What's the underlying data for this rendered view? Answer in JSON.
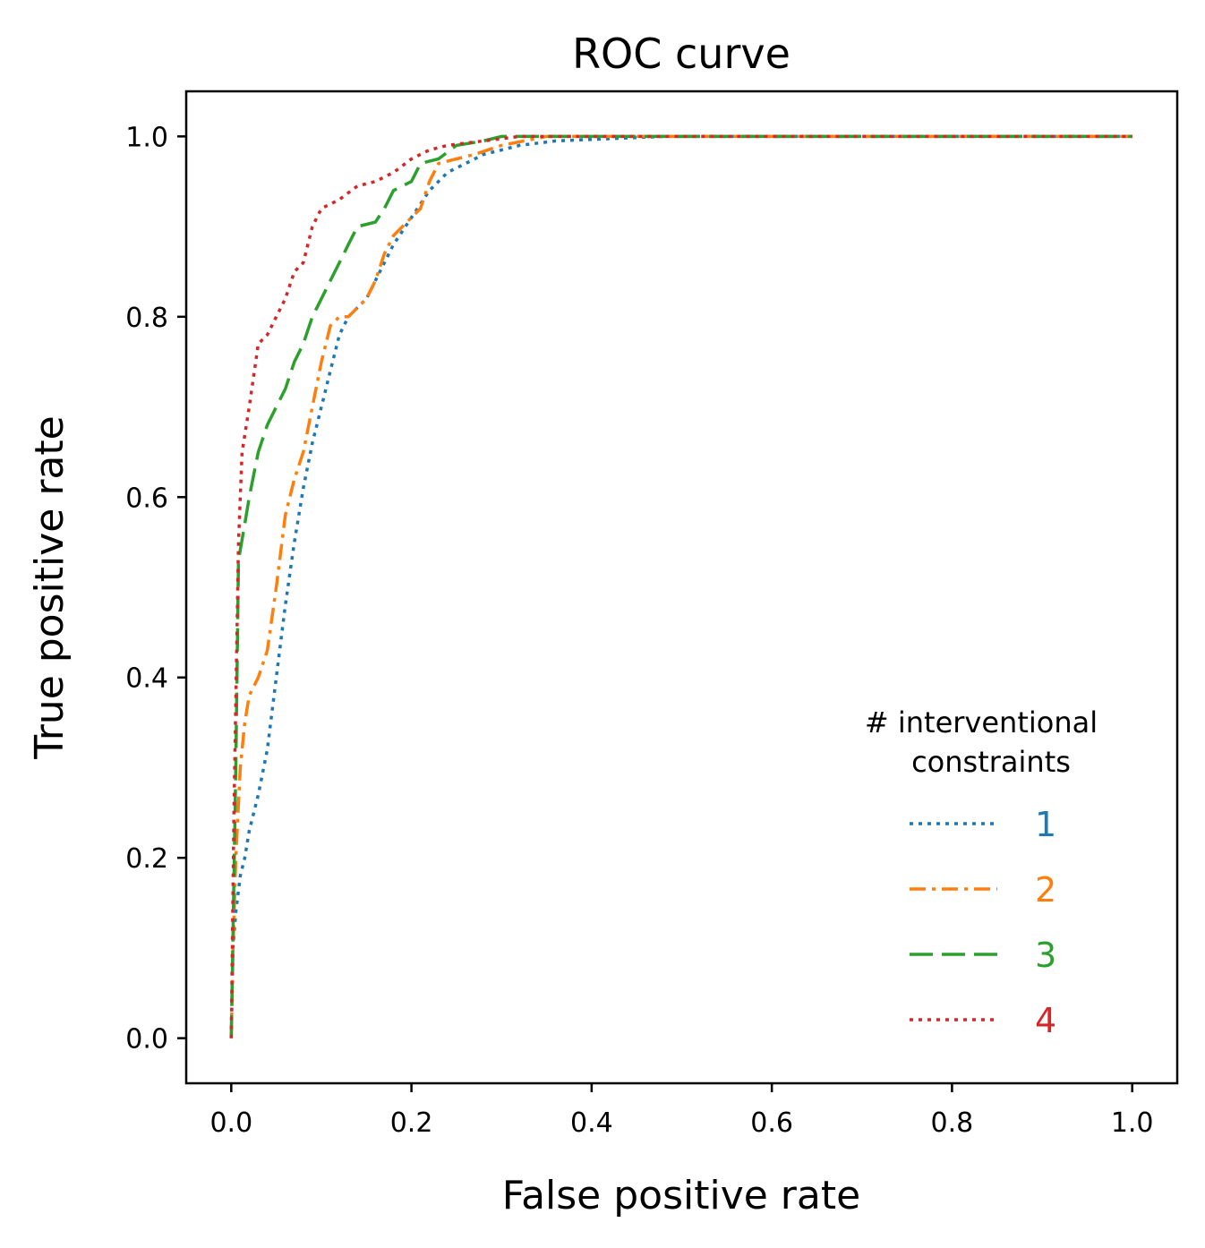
{
  "chart_data": {
    "type": "line",
    "title": "ROC curve",
    "xlabel": "False positive rate",
    "ylabel": "True positive rate",
    "xlim": [
      -0.05,
      1.05
    ],
    "ylim": [
      -0.05,
      1.05
    ],
    "xticks": [
      0.0,
      0.2,
      0.4,
      0.6,
      0.8,
      1.0
    ],
    "yticks": [
      0.0,
      0.2,
      0.4,
      0.6,
      0.8,
      1.0
    ],
    "xtick_labels": [
      "0.0",
      "0.2",
      "0.4",
      "0.6",
      "0.8",
      "1.0"
    ],
    "ytick_labels": [
      "0.0",
      "0.2",
      "0.4",
      "0.6",
      "0.8",
      "1.0"
    ],
    "grid": false,
    "legend": {
      "title_lines": [
        "# interventional",
        "constraints"
      ],
      "placement": "lower-right"
    },
    "series": [
      {
        "name": "1",
        "color": "#1f77b4",
        "dash": "dotted",
        "points": [
          [
            0.0,
            0.0
          ],
          [
            0.002,
            0.1
          ],
          [
            0.005,
            0.14
          ],
          [
            0.01,
            0.18
          ],
          [
            0.015,
            0.2
          ],
          [
            0.02,
            0.23
          ],
          [
            0.03,
            0.27
          ],
          [
            0.04,
            0.32
          ],
          [
            0.05,
            0.4
          ],
          [
            0.06,
            0.48
          ],
          [
            0.07,
            0.55
          ],
          [
            0.08,
            0.61
          ],
          [
            0.09,
            0.66
          ],
          [
            0.1,
            0.7
          ],
          [
            0.11,
            0.74
          ],
          [
            0.12,
            0.78
          ],
          [
            0.13,
            0.8
          ],
          [
            0.15,
            0.82
          ],
          [
            0.16,
            0.84
          ],
          [
            0.18,
            0.88
          ],
          [
            0.2,
            0.91
          ],
          [
            0.22,
            0.94
          ],
          [
            0.24,
            0.96
          ],
          [
            0.26,
            0.97
          ],
          [
            0.28,
            0.98
          ],
          [
            0.3,
            0.985
          ],
          [
            0.32,
            0.99
          ],
          [
            0.36,
            0.995
          ],
          [
            0.48,
            1.0
          ],
          [
            1.0,
            1.0
          ]
        ]
      },
      {
        "name": "2",
        "color": "#ff7f0e",
        "dash": "dashdot",
        "points": [
          [
            0.0,
            0.0
          ],
          [
            0.002,
            0.1
          ],
          [
            0.005,
            0.2
          ],
          [
            0.01,
            0.3
          ],
          [
            0.015,
            0.35
          ],
          [
            0.02,
            0.38
          ],
          [
            0.03,
            0.4
          ],
          [
            0.04,
            0.43
          ],
          [
            0.05,
            0.5
          ],
          [
            0.06,
            0.58
          ],
          [
            0.07,
            0.62
          ],
          [
            0.08,
            0.65
          ],
          [
            0.09,
            0.7
          ],
          [
            0.1,
            0.75
          ],
          [
            0.11,
            0.79
          ],
          [
            0.12,
            0.8
          ],
          [
            0.13,
            0.8
          ],
          [
            0.14,
            0.81
          ],
          [
            0.15,
            0.82
          ],
          [
            0.16,
            0.84
          ],
          [
            0.17,
            0.87
          ],
          [
            0.18,
            0.89
          ],
          [
            0.19,
            0.9
          ],
          [
            0.2,
            0.91
          ],
          [
            0.21,
            0.92
          ],
          [
            0.22,
            0.95
          ],
          [
            0.23,
            0.97
          ],
          [
            0.25,
            0.975
          ],
          [
            0.27,
            0.98
          ],
          [
            0.3,
            0.99
          ],
          [
            0.35,
            1.0
          ],
          [
            1.0,
            1.0
          ]
        ]
      },
      {
        "name": "3",
        "color": "#2ca02c",
        "dash": "dashed",
        "points": [
          [
            0.0,
            0.0
          ],
          [
            0.005,
            0.3
          ],
          [
            0.008,
            0.53
          ],
          [
            0.015,
            0.57
          ],
          [
            0.02,
            0.6
          ],
          [
            0.03,
            0.65
          ],
          [
            0.04,
            0.68
          ],
          [
            0.05,
            0.7
          ],
          [
            0.06,
            0.72
          ],
          [
            0.07,
            0.75
          ],
          [
            0.08,
            0.77
          ],
          [
            0.09,
            0.8
          ],
          [
            0.1,
            0.82
          ],
          [
            0.11,
            0.84
          ],
          [
            0.12,
            0.86
          ],
          [
            0.13,
            0.88
          ],
          [
            0.14,
            0.9
          ],
          [
            0.16,
            0.905
          ],
          [
            0.17,
            0.92
          ],
          [
            0.18,
            0.94
          ],
          [
            0.19,
            0.945
          ],
          [
            0.2,
            0.95
          ],
          [
            0.21,
            0.97
          ],
          [
            0.23,
            0.975
          ],
          [
            0.25,
            0.99
          ],
          [
            0.28,
            0.995
          ],
          [
            0.3,
            1.0
          ],
          [
            1.0,
            1.0
          ]
        ]
      },
      {
        "name": "4",
        "color": "#d62728",
        "dash": "dotted",
        "points": [
          [
            0.0,
            0.0
          ],
          [
            0.003,
            0.25
          ],
          [
            0.008,
            0.55
          ],
          [
            0.012,
            0.65
          ],
          [
            0.02,
            0.7
          ],
          [
            0.03,
            0.77
          ],
          [
            0.04,
            0.78
          ],
          [
            0.05,
            0.8
          ],
          [
            0.06,
            0.82
          ],
          [
            0.07,
            0.85
          ],
          [
            0.08,
            0.86
          ],
          [
            0.09,
            0.9
          ],
          [
            0.1,
            0.92
          ],
          [
            0.12,
            0.93
          ],
          [
            0.14,
            0.945
          ],
          [
            0.16,
            0.95
          ],
          [
            0.18,
            0.96
          ],
          [
            0.2,
            0.975
          ],
          [
            0.22,
            0.985
          ],
          [
            0.24,
            0.99
          ],
          [
            0.28,
            0.995
          ],
          [
            0.32,
            1.0
          ],
          [
            1.0,
            1.0
          ]
        ]
      }
    ]
  }
}
